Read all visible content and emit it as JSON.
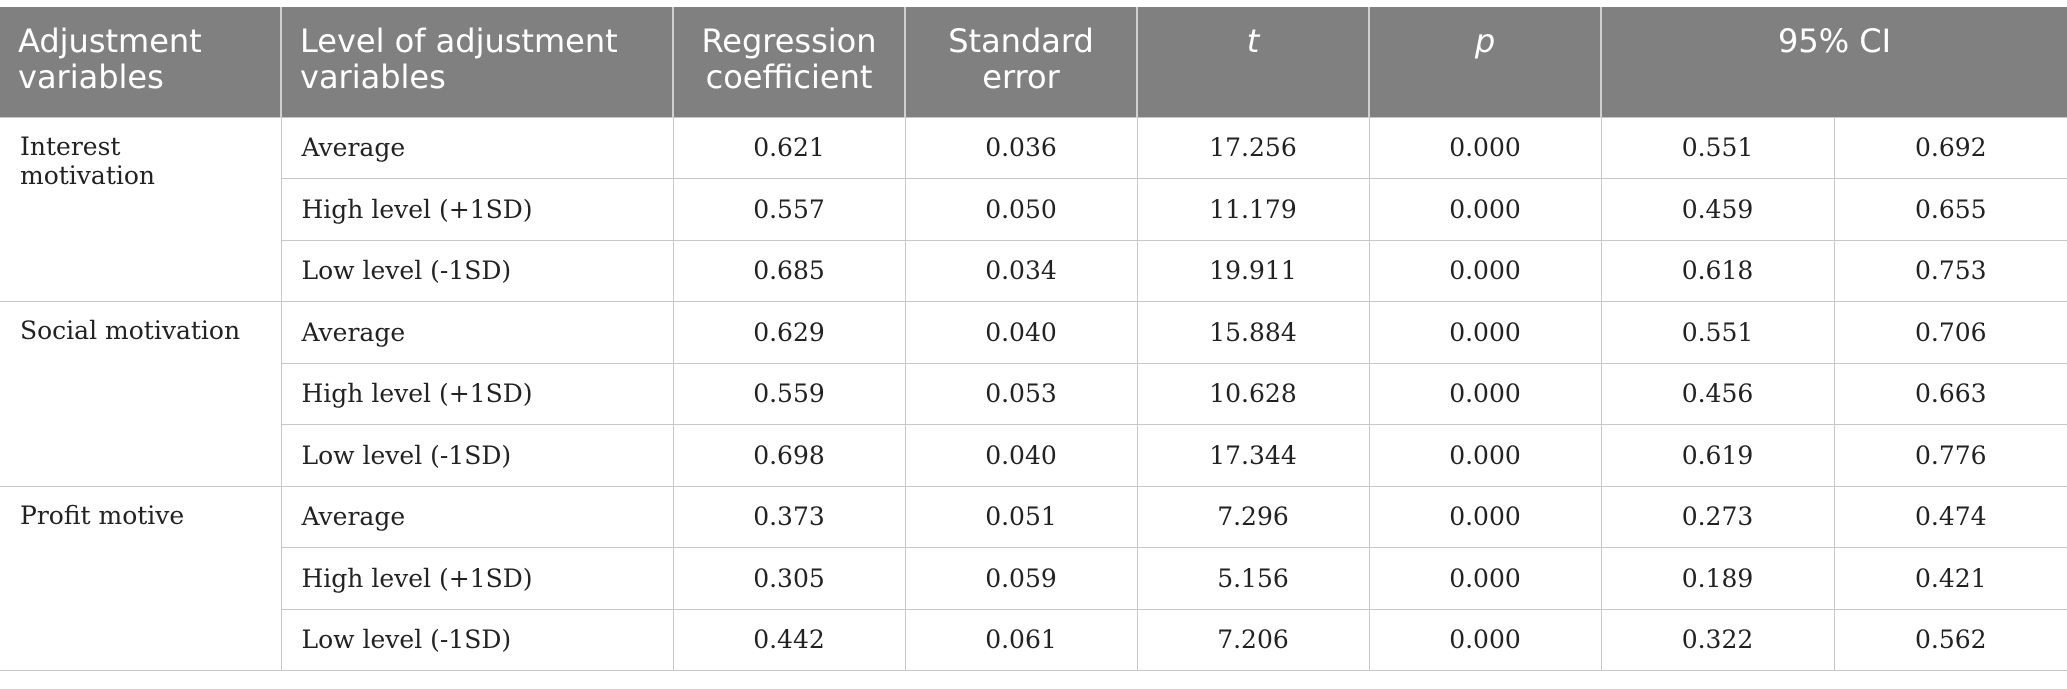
{
  "table": {
    "headers": {
      "adjustment_variables": "Adjustment variables",
      "level": "Level of adjustment variables",
      "regression_coefficient": "Regression coefficient",
      "standard_error": "Standard error",
      "t": "t",
      "p": "p",
      "ci": "95% CI"
    },
    "groups": [
      {
        "name": "Interest motivation",
        "rows": [
          {
            "level": "Average",
            "coef": "0.621",
            "se": "0.036",
            "t": "17.256",
            "p": "0.000",
            "ci_low": "0.551",
            "ci_high": "0.692"
          },
          {
            "level": "High level (+1SD)",
            "coef": "0.557",
            "se": "0.050",
            "t": "11.179",
            "p": "0.000",
            "ci_low": "0.459",
            "ci_high": "0.655"
          },
          {
            "level": "Low level (-1SD)",
            "coef": "0.685",
            "se": "0.034",
            "t": "19.911",
            "p": "0.000",
            "ci_low": "0.618",
            "ci_high": "0.753"
          }
        ]
      },
      {
        "name": "Social motivation",
        "rows": [
          {
            "level": "Average",
            "coef": "0.629",
            "se": "0.040",
            "t": "15.884",
            "p": "0.000",
            "ci_low": "0.551",
            "ci_high": "0.706"
          },
          {
            "level": "High level (+1SD)",
            "coef": "0.559",
            "se": "0.053",
            "t": "10.628",
            "p": "0.000",
            "ci_low": "0.456",
            "ci_high": "0.663"
          },
          {
            "level": "Low level (-1SD)",
            "coef": "0.698",
            "se": "0.040",
            "t": "17.344",
            "p": "0.000",
            "ci_low": "0.619",
            "ci_high": "0.776"
          }
        ]
      },
      {
        "name": "Profit motive",
        "rows": [
          {
            "level": "Average",
            "coef": "0.373",
            "se": "0.051",
            "t": "7.296",
            "p": "0.000",
            "ci_low": "0.273",
            "ci_high": "0.474"
          },
          {
            "level": "High level (+1SD)",
            "coef": "0.305",
            "se": "0.059",
            "t": "5.156",
            "p": "0.000",
            "ci_low": "0.189",
            "ci_high": "0.421"
          },
          {
            "level": "Low level (-1SD)",
            "coef": "0.442",
            "se": "0.061",
            "t": "7.206",
            "p": "0.000",
            "ci_low": "0.322",
            "ci_high": "0.562"
          }
        ]
      }
    ]
  }
}
